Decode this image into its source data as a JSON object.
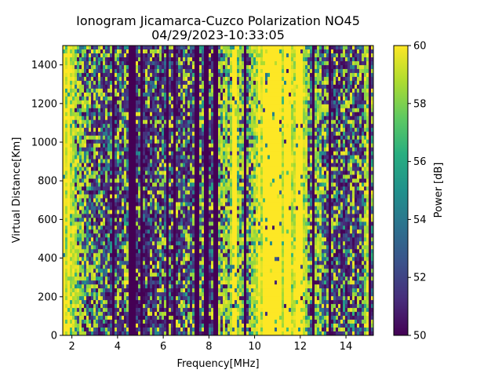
{
  "chart_data": {
    "type": "heatmap",
    "title": "Ionogram Jicamarca-Cuzco Polarization NO45",
    "subtitle": "04/29/2023-10:33:05",
    "xlabel": "Frequency[MHz]",
    "ylabel": "Virtual Distance[Km]",
    "xlim": [
      1.6,
      15.2
    ],
    "ylim": [
      0,
      1500
    ],
    "x_ticks": [
      2,
      4,
      6,
      8,
      10,
      12,
      14
    ],
    "y_ticks": [
      0,
      200,
      400,
      600,
      800,
      1000,
      1200,
      1400
    ],
    "colorbar": {
      "label": "Power [dB]",
      "range": [
        50,
        60
      ],
      "ticks": [
        50,
        52,
        54,
        56,
        58,
        60
      ],
      "colormap": "viridis"
    },
    "column_power_profile": {
      "frequency_MHz": [
        1.6,
        2.0,
        2.4,
        2.6,
        2.8,
        3.2,
        3.6,
        3.8,
        4.2,
        4.6,
        5.0,
        5.6,
        6.2,
        6.8,
        7.4,
        7.8,
        8.2,
        8.6,
        8.9,
        9.1,
        9.4,
        9.8,
        10.2,
        10.6,
        11.5,
        12.1,
        12.4,
        12.7,
        13.0,
        13.3,
        13.8,
        14.3,
        14.7,
        14.9,
        15.2
      ],
      "mean_power_dB": [
        59.5,
        58.5,
        56.0,
        55.0,
        54.0,
        53.5,
        54.0,
        53.0,
        52.5,
        53.0,
        51.5,
        52.0,
        53.0,
        52.5,
        52.5,
        55.0,
        53.5,
        55.0,
        55.5,
        60.0,
        55.5,
        54.5,
        60.0,
        60.0,
        60.0,
        59.5,
        54.0,
        56.5,
        55.0,
        53.0,
        52.5,
        54.0,
        53.0,
        59.0,
        53.0
      ]
    }
  }
}
